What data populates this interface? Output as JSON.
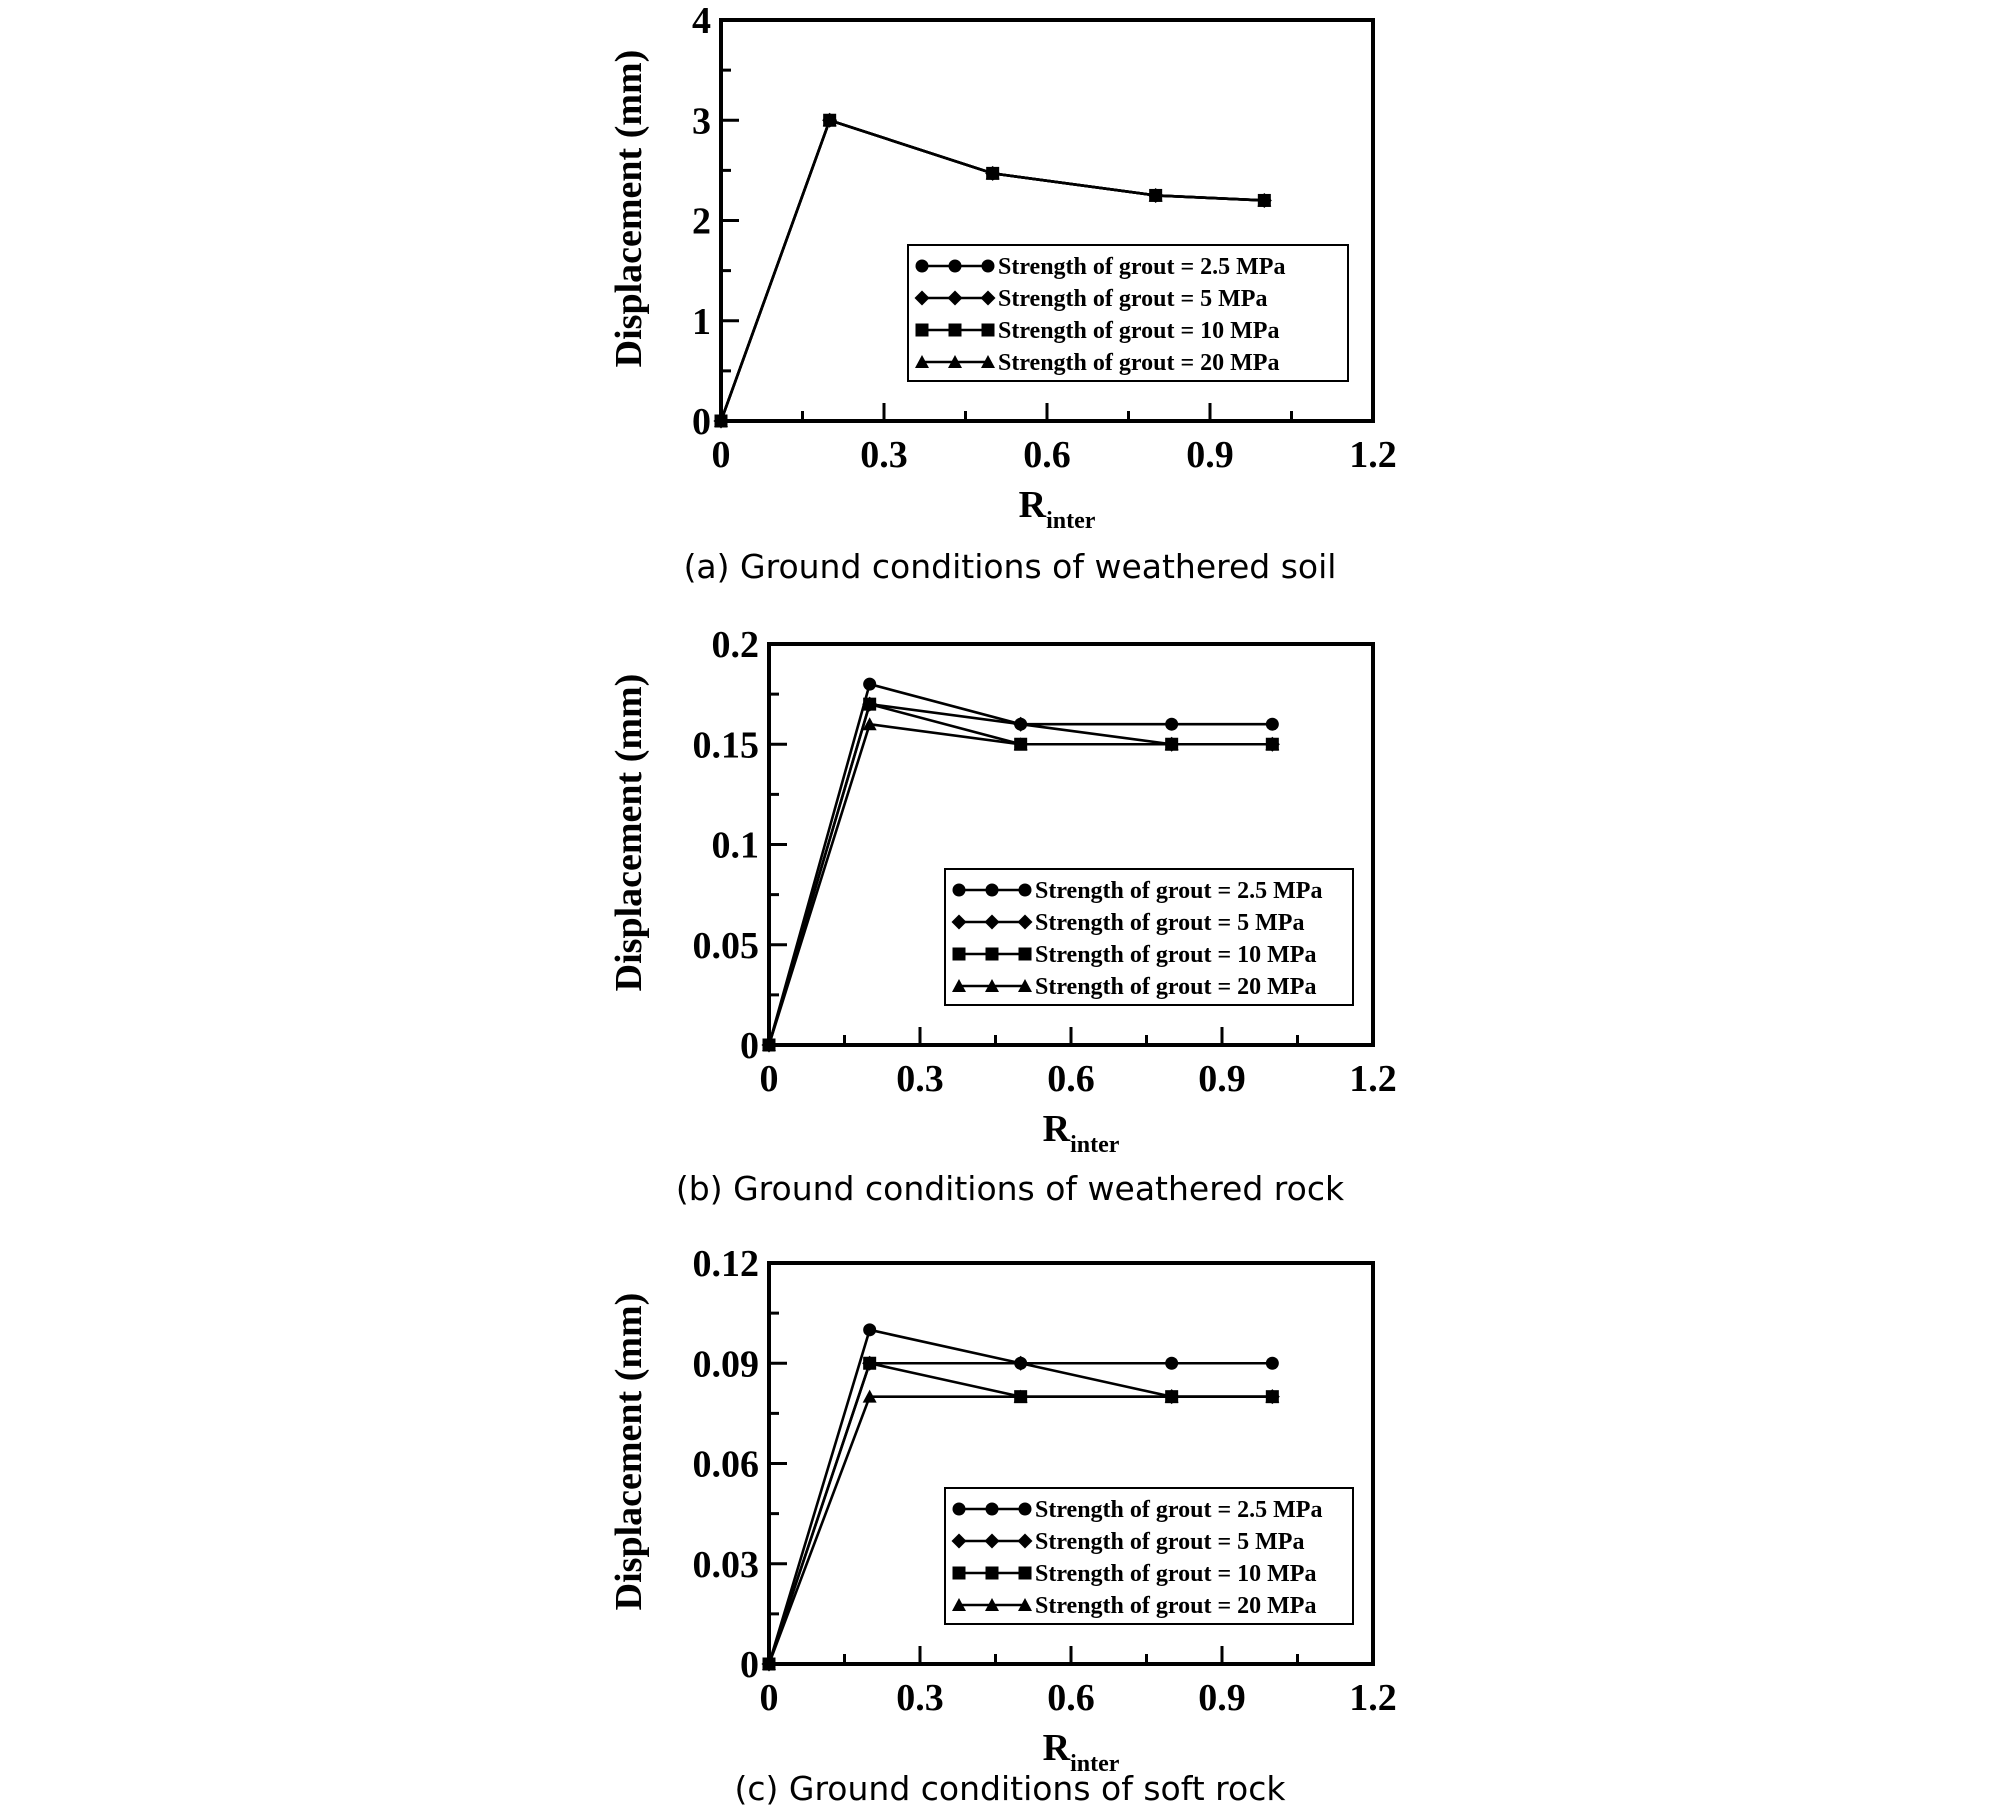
{
  "chart_data": [
    {
      "type": "line",
      "caption": "(a) Ground conditions of weathered soil",
      "xlabel": "R",
      "xlabel_sub": "inter",
      "ylabel": "Displacement (mm)",
      "xlim": [
        0,
        1.2
      ],
      "ylim": [
        0,
        4
      ],
      "x_ticks": [
        0,
        0.3,
        0.6,
        0.9,
        1.2
      ],
      "x_tick_labels": [
        "0",
        "0.3",
        "0.6",
        "0.9",
        "1.2"
      ],
      "y_ticks": [
        0,
        1,
        2,
        3,
        4
      ],
      "y_tick_labels": [
        "0",
        "1",
        "2",
        "3",
        "4"
      ],
      "grid": false,
      "legend_position": "lower-right",
      "x": [
        0,
        0.2,
        0.5,
        0.8,
        1.0
      ],
      "series": [
        {
          "name": "Strength of grout = 2.5 MPa",
          "marker": "circle",
          "values": [
            0,
            3.0,
            2.47,
            2.25,
            2.2
          ]
        },
        {
          "name": "Strength of grout = 5 MPa",
          "marker": "diamond",
          "values": [
            0,
            3.0,
            2.47,
            2.25,
            2.2
          ]
        },
        {
          "name": "Strength of grout = 10 MPa",
          "marker": "square",
          "values": [
            0,
            3.0,
            2.47,
            2.25,
            2.2
          ]
        },
        {
          "name": "Strength of grout = 20 MPa",
          "marker": "triangle",
          "values": [
            0,
            3.0,
            2.47,
            2.25,
            2.2
          ]
        }
      ]
    },
    {
      "type": "line",
      "caption": "(b) Ground conditions of weathered rock",
      "xlabel": "R",
      "xlabel_sub": "inter",
      "ylabel": "Displacement (mm)",
      "xlim": [
        0,
        1.2
      ],
      "ylim": [
        0,
        0.2
      ],
      "x_ticks": [
        0,
        0.3,
        0.6,
        0.9,
        1.2
      ],
      "x_tick_labels": [
        "0",
        "0.3",
        "0.6",
        "0.9",
        "1.2"
      ],
      "y_ticks": [
        0,
        0.05,
        0.1,
        0.15,
        0.2
      ],
      "y_tick_labels": [
        "0",
        "0.05",
        "0.1",
        "0.15",
        "0.2"
      ],
      "grid": false,
      "legend_position": "lower-right",
      "x": [
        0,
        0.2,
        0.5,
        0.8,
        1.0
      ],
      "series": [
        {
          "name": "Strength of grout = 2.5 MPa",
          "marker": "circle",
          "values": [
            0,
            0.18,
            0.16,
            0.16,
            0.16
          ]
        },
        {
          "name": "Strength of grout = 5 MPa",
          "marker": "diamond",
          "values": [
            0,
            0.17,
            0.16,
            0.15,
            0.15
          ]
        },
        {
          "name": "Strength of grout = 10 MPa",
          "marker": "square",
          "values": [
            0,
            0.17,
            0.15,
            0.15,
            0.15
          ]
        },
        {
          "name": "Strength of grout = 20 MPa",
          "marker": "triangle",
          "values": [
            0,
            0.16,
            0.15,
            0.15,
            0.15
          ]
        }
      ]
    },
    {
      "type": "line",
      "caption": "(c) Ground conditions of soft rock",
      "xlabel": "R",
      "xlabel_sub": "inter",
      "ylabel": "Displacement (mm)",
      "xlim": [
        0,
        1.2
      ],
      "ylim": [
        0,
        0.12
      ],
      "x_ticks": [
        0,
        0.3,
        0.6,
        0.9,
        1.2
      ],
      "x_tick_labels": [
        "0",
        "0.3",
        "0.6",
        "0.9",
        "1.2"
      ],
      "y_ticks": [
        0,
        0.03,
        0.06,
        0.09,
        0.12
      ],
      "y_tick_labels": [
        "0",
        "0.03",
        "0.06",
        "0.09",
        "0.12"
      ],
      "grid": false,
      "legend_position": "lower-right",
      "x": [
        0,
        0.2,
        0.5,
        0.8,
        1.0
      ],
      "series": [
        {
          "name": "Strength of grout = 2.5 MPa",
          "marker": "circle",
          "values": [
            0,
            0.1,
            0.09,
            0.09,
            0.09
          ]
        },
        {
          "name": "Strength of grout = 5 MPa",
          "marker": "diamond",
          "values": [
            0,
            0.09,
            0.09,
            0.08,
            0.08
          ]
        },
        {
          "name": "Strength of grout = 10 MPa",
          "marker": "square",
          "values": [
            0,
            0.09,
            0.08,
            0.08,
            0.08
          ]
        },
        {
          "name": "Strength of grout = 20 MPa",
          "marker": "triangle",
          "values": [
            0,
            0.08,
            0.08,
            0.08,
            0.08
          ]
        }
      ]
    }
  ]
}
